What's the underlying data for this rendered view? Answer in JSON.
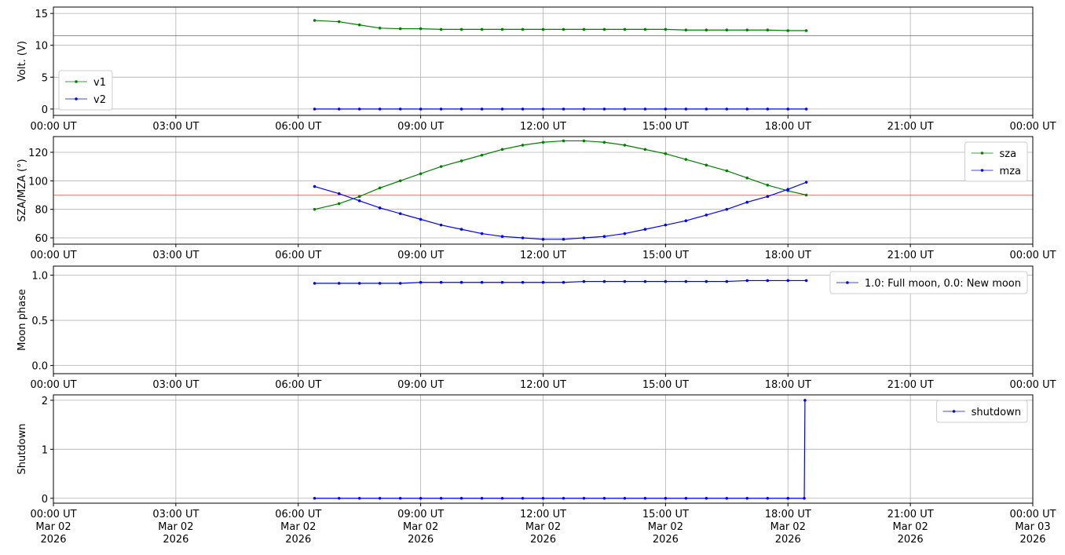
{
  "chart_data": [
    {
      "type": "line",
      "ylabel": "Volt. (V)",
      "xlim": [
        "2026-03-02 00:00",
        "2026-03-03 00:00"
      ],
      "xticks": [
        {
          "value": "2026-03-02 00:00",
          "label": "00:00 UT"
        },
        {
          "value": "2026-03-02 03:00",
          "label": "03:00 UT"
        },
        {
          "value": "2026-03-02 06:00",
          "label": "06:00 UT"
        },
        {
          "value": "2026-03-02 09:00",
          "label": "09:00 UT"
        },
        {
          "value": "2026-03-02 12:00",
          "label": "12:00 UT"
        },
        {
          "value": "2026-03-02 15:00",
          "label": "15:00 UT"
        },
        {
          "value": "2026-03-02 18:00",
          "label": "18:00 UT"
        },
        {
          "value": "2026-03-02 21:00",
          "label": "21:00 UT"
        },
        {
          "value": "2026-03-03 00:00",
          "label": "00:00 UT"
        }
      ],
      "ylim": [
        -1,
        16
      ],
      "yticks": [
        0,
        5,
        10,
        15
      ],
      "grid": true,
      "legend": "lower left",
      "hline": 11.5,
      "hline_color": "#ff0000",
      "x": [
        "2026-03-02 06:24",
        "2026-03-02 07:00",
        "2026-03-02 07:30",
        "2026-03-02 08:00",
        "2026-03-02 08:30",
        "2026-03-02 09:00",
        "2026-03-02 09:30",
        "2026-03-02 10:00",
        "2026-03-02 10:30",
        "2026-03-02 11:00",
        "2026-03-02 11:30",
        "2026-03-02 12:00",
        "2026-03-02 12:30",
        "2026-03-02 13:00",
        "2026-03-02 13:30",
        "2026-03-02 14:00",
        "2026-03-02 14:30",
        "2026-03-02 15:00",
        "2026-03-02 15:30",
        "2026-03-02 16:00",
        "2026-03-02 16:30",
        "2026-03-02 17:00",
        "2026-03-02 17:30",
        "2026-03-02 18:00",
        "2026-03-02 18:27"
      ],
      "series": [
        {
          "name": "v1",
          "color": "#008000",
          "values": [
            13.9,
            13.7,
            13.2,
            12.7,
            12.6,
            12.6,
            12.5,
            12.5,
            12.5,
            12.5,
            12.5,
            12.5,
            12.5,
            12.5,
            12.5,
            12.5,
            12.5,
            12.5,
            12.4,
            12.4,
            12.4,
            12.4,
            12.4,
            12.3,
            12.3
          ]
        },
        {
          "name": "v2",
          "color": "#0000ff",
          "values": [
            0,
            0,
            0,
            0,
            0,
            0,
            0,
            0,
            0,
            0,
            0,
            0,
            0,
            0,
            0,
            0,
            0,
            0,
            0,
            0,
            0,
            0,
            0,
            0,
            0
          ]
        }
      ]
    },
    {
      "type": "line",
      "ylabel": "SZA/MZA (°)",
      "xlim": [
        "2026-03-02 00:00",
        "2026-03-03 00:00"
      ],
      "xticks": [
        {
          "value": "2026-03-02 00:00",
          "label": "00:00 UT"
        },
        {
          "value": "2026-03-02 03:00",
          "label": "03:00 UT"
        },
        {
          "value": "2026-03-02 06:00",
          "label": "06:00 UT"
        },
        {
          "value": "2026-03-02 09:00",
          "label": "09:00 UT"
        },
        {
          "value": "2026-03-02 12:00",
          "label": "12:00 UT"
        },
        {
          "value": "2026-03-02 15:00",
          "label": "15:00 UT"
        },
        {
          "value": "2026-03-02 18:00",
          "label": "18:00 UT"
        },
        {
          "value": "2026-03-02 21:00",
          "label": "21:00 UT"
        },
        {
          "value": "2026-03-03 00:00",
          "label": "00:00 UT"
        }
      ],
      "ylim": [
        55.6,
        131
      ],
      "yticks": [
        60,
        80,
        100,
        120
      ],
      "grid": true,
      "legend": "upper right",
      "hline": 90,
      "hline_color": "#ff0000",
      "x": [
        "2026-03-02 06:24",
        "2026-03-02 07:00",
        "2026-03-02 07:30",
        "2026-03-02 08:00",
        "2026-03-02 08:30",
        "2026-03-02 09:00",
        "2026-03-02 09:30",
        "2026-03-02 10:00",
        "2026-03-02 10:30",
        "2026-03-02 11:00",
        "2026-03-02 11:30",
        "2026-03-02 12:00",
        "2026-03-02 12:30",
        "2026-03-02 13:00",
        "2026-03-02 13:30",
        "2026-03-02 14:00",
        "2026-03-02 14:30",
        "2026-03-02 15:00",
        "2026-03-02 15:30",
        "2026-03-02 16:00",
        "2026-03-02 16:30",
        "2026-03-02 17:00",
        "2026-03-02 17:30",
        "2026-03-02 18:00",
        "2026-03-02 18:27"
      ],
      "series": [
        {
          "name": "sza",
          "color": "#008000",
          "values": [
            80,
            84,
            89,
            95,
            100,
            105,
            110,
            114,
            118,
            122,
            125,
            127,
            128,
            128,
            127,
            125,
            122,
            119,
            115,
            111,
            107,
            102,
            97,
            93,
            90
          ]
        },
        {
          "name": "mza",
          "color": "#0000ff",
          "values": [
            96,
            91,
            86,
            81,
            77,
            73,
            69,
            66,
            63,
            61,
            60,
            59,
            59,
            60,
            61,
            63,
            66,
            69,
            72,
            76,
            80,
            85,
            89,
            94,
            99
          ]
        }
      ]
    },
    {
      "type": "line",
      "ylabel": "Moon phase",
      "xlim": [
        "2026-03-02 00:00",
        "2026-03-03 00:00"
      ],
      "xticks": [
        {
          "value": "2026-03-02 00:00",
          "label": "00:00 UT"
        },
        {
          "value": "2026-03-02 03:00",
          "label": "03:00 UT"
        },
        {
          "value": "2026-03-02 06:00",
          "label": "06:00 UT"
        },
        {
          "value": "2026-03-02 09:00",
          "label": "09:00 UT"
        },
        {
          "value": "2026-03-02 12:00",
          "label": "12:00 UT"
        },
        {
          "value": "2026-03-02 15:00",
          "label": "15:00 UT"
        },
        {
          "value": "2026-03-02 18:00",
          "label": "18:00 UT"
        },
        {
          "value": "2026-03-02 21:00",
          "label": "21:00 UT"
        },
        {
          "value": "2026-03-03 00:00",
          "label": "00:00 UT"
        }
      ],
      "ylim": [
        -0.09,
        1.1
      ],
      "yticks": [
        {
          "value": 0,
          "label": "0.0"
        },
        {
          "value": 0.5,
          "label": "0.5"
        },
        {
          "value": 1,
          "label": "1.0"
        }
      ],
      "grid": true,
      "legend": "upper right",
      "x": [
        "2026-03-02 06:24",
        "2026-03-02 07:00",
        "2026-03-02 07:30",
        "2026-03-02 08:00",
        "2026-03-02 08:30",
        "2026-03-02 09:00",
        "2026-03-02 09:30",
        "2026-03-02 10:00",
        "2026-03-02 10:30",
        "2026-03-02 11:00",
        "2026-03-02 11:30",
        "2026-03-02 12:00",
        "2026-03-02 12:30",
        "2026-03-02 13:00",
        "2026-03-02 13:30",
        "2026-03-02 14:00",
        "2026-03-02 14:30",
        "2026-03-02 15:00",
        "2026-03-02 15:30",
        "2026-03-02 16:00",
        "2026-03-02 16:30",
        "2026-03-02 17:00",
        "2026-03-02 17:30",
        "2026-03-02 18:00",
        "2026-03-02 18:27"
      ],
      "series": [
        {
          "name": "1.0: Full moon, 0.0: New moon",
          "color": "#0000ff",
          "values": [
            0.91,
            0.91,
            0.91,
            0.91,
            0.91,
            0.92,
            0.92,
            0.92,
            0.92,
            0.92,
            0.92,
            0.92,
            0.92,
            0.93,
            0.93,
            0.93,
            0.93,
            0.93,
            0.93,
            0.93,
            0.93,
            0.94,
            0.94,
            0.94,
            0.94
          ]
        }
      ]
    },
    {
      "type": "line",
      "ylabel": "Shutdown",
      "xlim": [
        "2026-03-02 00:00",
        "2026-03-03 00:00"
      ],
      "xticks": [
        {
          "value": "2026-03-02 00:00",
          "label": [
            "00:00 UT",
            "Mar 02",
            "2026"
          ]
        },
        {
          "value": "2026-03-02 03:00",
          "label": [
            "03:00 UT",
            "Mar 02",
            "2026"
          ]
        },
        {
          "value": "2026-03-02 06:00",
          "label": [
            "06:00 UT",
            "Mar 02",
            "2026"
          ]
        },
        {
          "value": "2026-03-02 09:00",
          "label": [
            "09:00 UT",
            "Mar 02",
            "2026"
          ]
        },
        {
          "value": "2026-03-02 12:00",
          "label": [
            "12:00 UT",
            "Mar 02",
            "2026"
          ]
        },
        {
          "value": "2026-03-02 15:00",
          "label": [
            "15:00 UT",
            "Mar 02",
            "2026"
          ]
        },
        {
          "value": "2026-03-02 18:00",
          "label": [
            "18:00 UT",
            "Mar 02",
            "2026"
          ]
        },
        {
          "value": "2026-03-02 21:00",
          "label": [
            "21:00 UT",
            "Mar 02",
            "2026"
          ]
        },
        {
          "value": "2026-03-03 00:00",
          "label": [
            "00:00 UT",
            "Mar 03",
            "2026"
          ]
        }
      ],
      "ylim": [
        -0.1,
        2.11
      ],
      "yticks": [
        0,
        1,
        2
      ],
      "grid": true,
      "legend": "upper right",
      "x": [
        "2026-03-02 06:24",
        "2026-03-02 07:00",
        "2026-03-02 07:30",
        "2026-03-02 08:00",
        "2026-03-02 08:30",
        "2026-03-02 09:00",
        "2026-03-02 09:30",
        "2026-03-02 10:00",
        "2026-03-02 10:30",
        "2026-03-02 11:00",
        "2026-03-02 11:30",
        "2026-03-02 12:00",
        "2026-03-02 12:30",
        "2026-03-02 13:00",
        "2026-03-02 13:30",
        "2026-03-02 14:00",
        "2026-03-02 14:30",
        "2026-03-02 15:00",
        "2026-03-02 15:30",
        "2026-03-02 16:00",
        "2026-03-02 16:30",
        "2026-03-02 17:00",
        "2026-03-02 17:30",
        "2026-03-02 18:00",
        "2026-03-02 18:24",
        "2026-03-02 18:25"
      ],
      "series": [
        {
          "name": "shutdown",
          "color": "#0000ff",
          "values": [
            0,
            0,
            0,
            0,
            0,
            0,
            0,
            0,
            0,
            0,
            0,
            0,
            0,
            0,
            0,
            0,
            0,
            0,
            0,
            0,
            0,
            0,
            0,
            0,
            0,
            2
          ]
        }
      ]
    }
  ]
}
